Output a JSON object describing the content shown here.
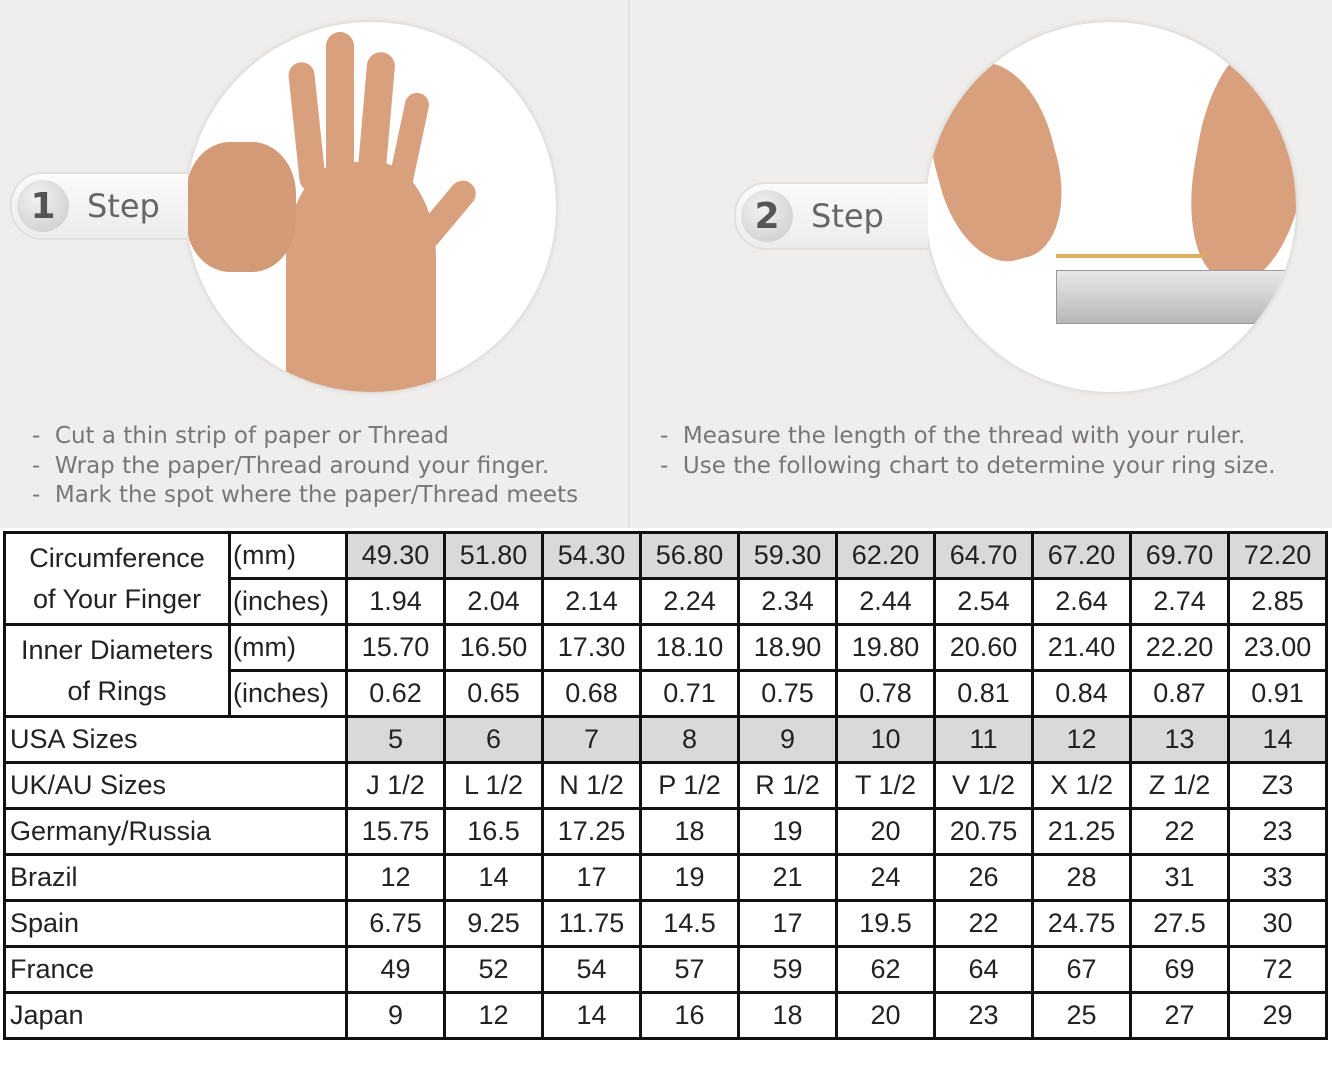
{
  "steps": [
    {
      "number": "1",
      "label": "Step",
      "bullets": [
        "Cut a thin strip of paper or Thread",
        "Wrap the paper/Thread around your finger.",
        "Mark the spot where the paper/Thread meets"
      ]
    },
    {
      "number": "2",
      "label": "Step",
      "bullets": [
        "Measure the length of the thread with your ruler.",
        "Use the following chart to determine your ring size."
      ]
    }
  ],
  "table": {
    "circumference": {
      "label_line1": "Circumference",
      "label_line2": "of Your Finger",
      "mm": {
        "unit": "(mm)",
        "values": [
          "49.30",
          "51.80",
          "54.30",
          "56.80",
          "59.30",
          "62.20",
          "64.70",
          "67.20",
          "69.70",
          "72.20"
        ]
      },
      "inches": {
        "unit": "(inches)",
        "values": [
          "1.94",
          "2.04",
          "2.14",
          "2.24",
          "2.34",
          "2.44",
          "2.54",
          "2.64",
          "2.74",
          "2.85"
        ]
      }
    },
    "inner_diameter": {
      "label_line1": "Inner Diameters",
      "label_line2": "of Rings",
      "mm": {
        "unit": "(mm)",
        "values": [
          "15.70",
          "16.50",
          "17.30",
          "18.10",
          "18.90",
          "19.80",
          "20.60",
          "21.40",
          "22.20",
          "23.00"
        ]
      },
      "inches": {
        "unit": "(inches)",
        "values": [
          "0.62",
          "0.65",
          "0.68",
          "0.71",
          "0.75",
          "0.78",
          "0.81",
          "0.84",
          "0.87",
          "0.91"
        ]
      }
    },
    "rows": [
      {
        "label": "USA Sizes",
        "gray": true,
        "values": [
          "5",
          "6",
          "7",
          "8",
          "9",
          "10",
          "11",
          "12",
          "13",
          "14"
        ]
      },
      {
        "label": "UK/AU Sizes",
        "values": [
          "J 1/2",
          "L 1/2",
          "N 1/2",
          "P 1/2",
          "R 1/2",
          "T 1/2",
          "V 1/2",
          "X 1/2",
          "Z 1/2",
          "Z3"
        ]
      },
      {
        "label": "Germany/Russia",
        "values": [
          "15.75",
          "16.5",
          "17.25",
          "18",
          "19",
          "20",
          "20.75",
          "21.25",
          "22",
          "23"
        ]
      },
      {
        "label": "Brazil",
        "values": [
          "12",
          "14",
          "17",
          "19",
          "21",
          "24",
          "26",
          "28",
          "31",
          "33"
        ]
      },
      {
        "label": "Spain",
        "values": [
          "6.75",
          "9.25",
          "11.75",
          "14.5",
          "17",
          "19.5",
          "22",
          "24.75",
          "27.5",
          "30"
        ]
      },
      {
        "label": "France",
        "values": [
          "49",
          "52",
          "54",
          "57",
          "59",
          "62",
          "64",
          "67",
          "69",
          "72"
        ]
      },
      {
        "label": "Japan",
        "values": [
          "9",
          "12",
          "14",
          "16",
          "18",
          "20",
          "23",
          "25",
          "27",
          "29"
        ]
      }
    ]
  }
}
